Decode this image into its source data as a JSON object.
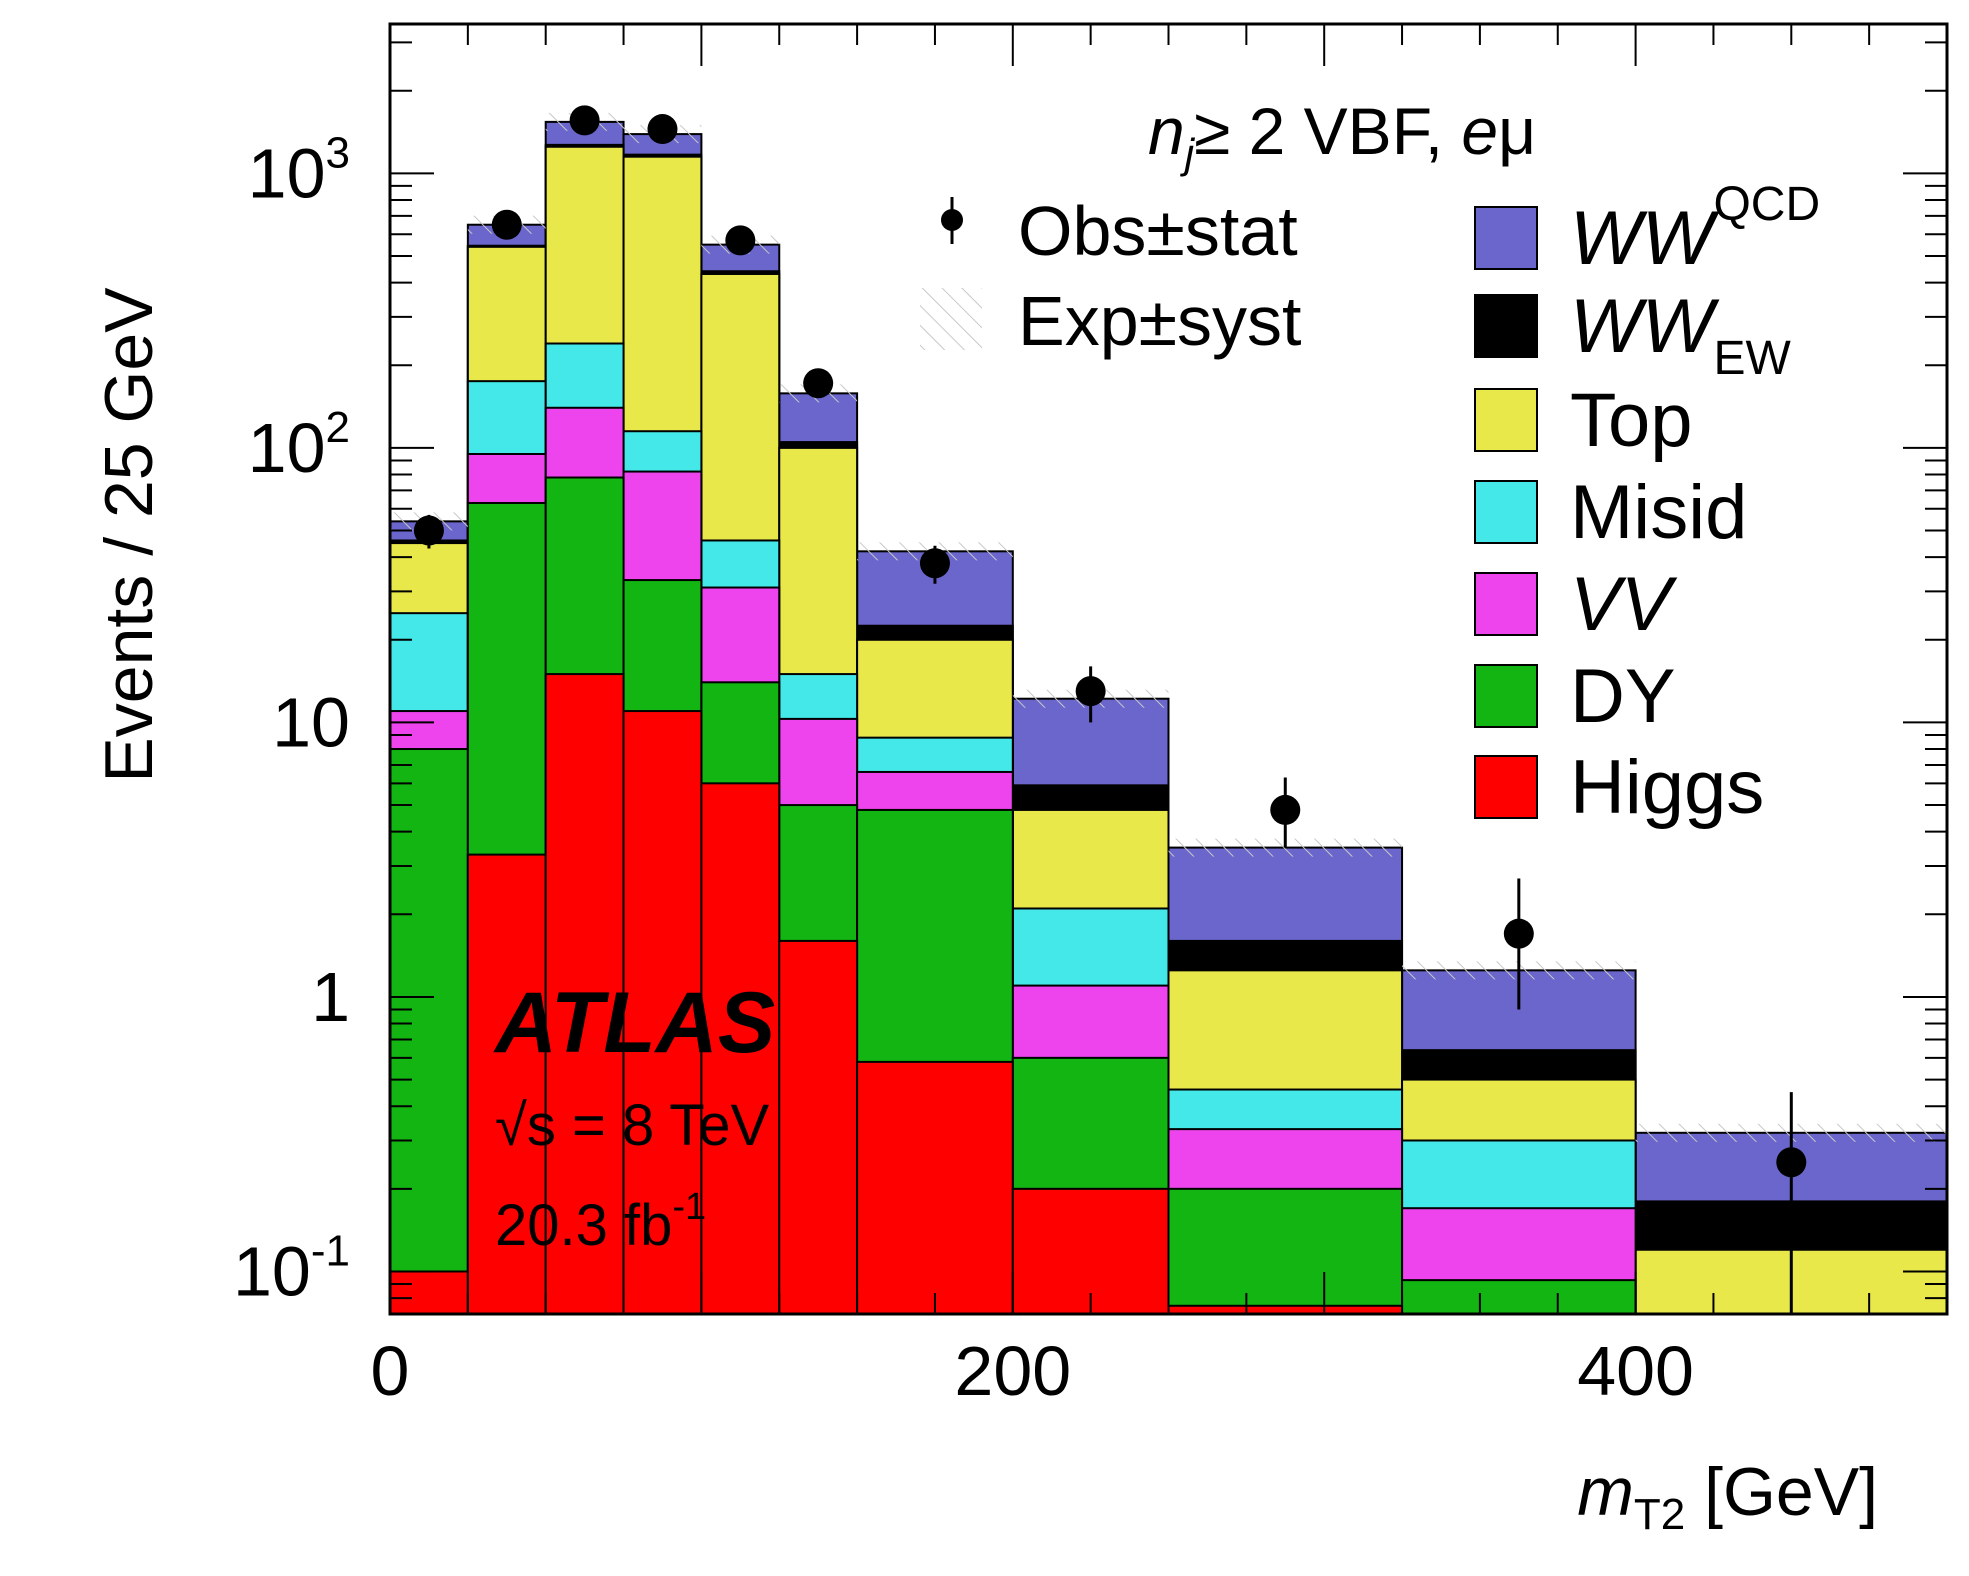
{
  "chart_data": {
    "type": "bar",
    "subtype": "stacked-histogram",
    "xlabel_var": "m",
    "xlabel_sub": "T2",
    "xlabel_unit": "[GeV]",
    "ylabel": "Events / 25 GeV",
    "y_scale": "log",
    "xlim": [
      0,
      500
    ],
    "ylim": [
      0.07,
      3500
    ],
    "x_ticks": [
      {
        "value": 0,
        "label": "0"
      },
      {
        "value": 200,
        "label": "200"
      },
      {
        "value": 400,
        "label": "400"
      }
    ],
    "y_ticks": [
      {
        "value": 0.1,
        "base": "10",
        "exp": "-1"
      },
      {
        "value": 1,
        "base": "1",
        "exp": ""
      },
      {
        "value": 10,
        "base": "10",
        "exp": ""
      },
      {
        "value": 100,
        "base": "10",
        "exp": "2"
      },
      {
        "value": 1000,
        "base": "10",
        "exp": "3"
      }
    ],
    "bin_edges": [
      0,
      25,
      50,
      75,
      100,
      125,
      150,
      200,
      250,
      325,
      400,
      500
    ],
    "stack_order": [
      "Higgs",
      "DY",
      "VV",
      "Misid",
      "Top",
      "WW_EW",
      "WW_QCD"
    ],
    "series_cumulative": [
      {
        "name": "Higgs",
        "color": "#ff0000",
        "values": [
          0.1,
          3.3,
          15,
          11,
          6,
          1.6,
          0.58,
          0.2,
          0.075,
          0.07,
          0.07
        ]
      },
      {
        "name": "DY",
        "color": "#13b513",
        "values": [
          8,
          63,
          78,
          33,
          14,
          5,
          4.8,
          0.6,
          0.2,
          0.093,
          0.07
        ]
      },
      {
        "name": "VV",
        "color": "#ee44ee",
        "values": [
          11,
          95,
          140,
          82,
          31,
          10.3,
          6.6,
          1.1,
          0.33,
          0.17,
          0.07
        ]
      },
      {
        "name": "Misid",
        "color": "#44e8e8",
        "values": [
          25,
          175,
          240,
          115,
          46,
          15,
          8.8,
          2.1,
          0.46,
          0.3,
          0.07
        ]
      },
      {
        "name": "Top",
        "color": "#e8e84a",
        "values": [
          45,
          540,
          1250,
          1150,
          430,
          100,
          20,
          4.8,
          1.25,
          0.5,
          0.12
        ]
      },
      {
        "name": "WW_EW",
        "color": "#000000",
        "values": [
          46,
          545,
          1270,
          1170,
          440,
          105,
          22.5,
          5.9,
          1.6,
          0.64,
          0.18
        ]
      },
      {
        "name": "WW_QCD",
        "color": "#6a66cc",
        "values": [
          54,
          650,
          1540,
          1390,
          550,
          158,
          42,
          12.2,
          3.5,
          1.25,
          0.32
        ]
      }
    ],
    "observed": {
      "name": "Obs±stat",
      "points": [
        {
          "x": 12.5,
          "y": 50,
          "err_lo": 7,
          "err_hi": 7
        },
        {
          "x": 37.5,
          "y": 650,
          "err_lo": 25,
          "err_hi": 25
        },
        {
          "x": 62.5,
          "y": 1560,
          "err_lo": 40,
          "err_hi": 40
        },
        {
          "x": 87.5,
          "y": 1450,
          "err_lo": 38,
          "err_hi": 38
        },
        {
          "x": 112.5,
          "y": 570,
          "err_lo": 24,
          "err_hi": 24
        },
        {
          "x": 137.5,
          "y": 172,
          "err_lo": 13,
          "err_hi": 13
        },
        {
          "x": 175,
          "y": 38,
          "err_lo": 6,
          "err_hi": 6
        },
        {
          "x": 225,
          "y": 13,
          "err_lo": 3,
          "err_hi": 3
        },
        {
          "x": 287.5,
          "y": 4.8,
          "err_lo": 1.3,
          "err_hi": 1.5
        },
        {
          "x": 362.5,
          "y": 1.7,
          "err_lo": 0.8,
          "err_hi": 1.0
        },
        {
          "x": 450,
          "y": 0.25,
          "err_lo": 0.2,
          "err_hi": 0.2
        }
      ]
    },
    "legend": [
      {
        "label": "Obs",
        "suffix": "stat",
        "kind": "marker",
        "pm": "±"
      },
      {
        "label": "Exp",
        "suffix": "syst",
        "kind": "hatch",
        "pm": "±"
      },
      {
        "label": "WW",
        "sub": "QCD",
        "kind": "box",
        "color": "#6a66cc",
        "italic": true
      },
      {
        "label": "WW",
        "sub": "EW",
        "kind": "box",
        "color": "#000000",
        "italic": true
      },
      {
        "label": "Top",
        "kind": "box",
        "color": "#e8e84a",
        "italic": false
      },
      {
        "label": "Misid",
        "kind": "box",
        "color": "#44e8e8",
        "italic": false
      },
      {
        "label": "VV",
        "kind": "box",
        "color": "#ee44ee",
        "italic": true
      },
      {
        "label": "DY",
        "kind": "box",
        "color": "#13b513",
        "italic": false
      },
      {
        "label": "Higgs",
        "kind": "box",
        "color": "#ff0000",
        "italic": false
      }
    ],
    "annotations": {
      "experiment": "ATLAS",
      "energy_prefix": "√",
      "energy": "s = 8 TeV",
      "lumi": "20.3 fb",
      "lumi_exp": "-1",
      "category_var": "n",
      "category_sub": "j",
      "category_rest": "≥ 2 VBF,",
      "channel_e": "e",
      "channel_mu": "μ"
    }
  }
}
